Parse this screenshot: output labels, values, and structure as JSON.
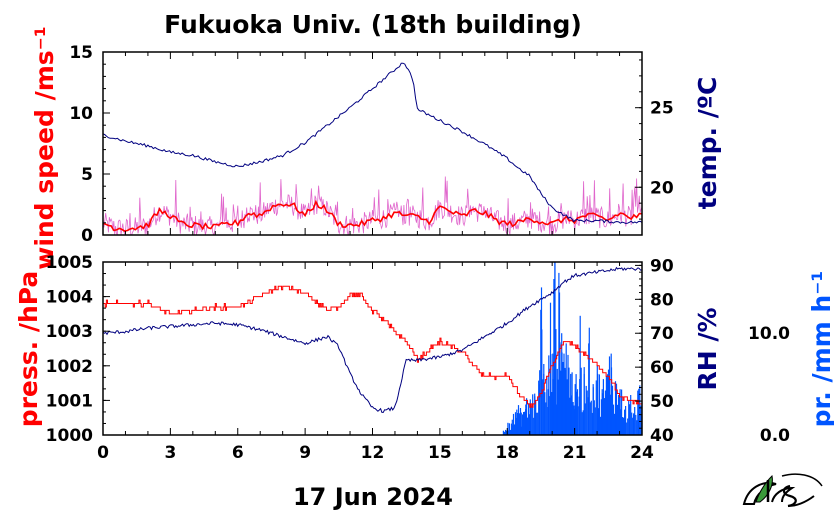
{
  "title": "Fukuoka Univ. (18th building)",
  "date": "17 Jun 2024",
  "colors": {
    "wind": "#ff0000",
    "wind_light": "#e066cc",
    "temp": "#000080",
    "press": "#ff0000",
    "rh": "#000080",
    "precip": "#0055ff"
  },
  "logo_icon": "ies-logo-icon",
  "chart_data": [
    {
      "type": "line",
      "panel": "top",
      "xlim": [
        0,
        24
      ],
      "x_ticks": [
        0,
        3,
        6,
        9,
        12,
        15,
        18,
        21,
        24
      ],
      "left_axis": {
        "label": "wind speed /ms⁻¹",
        "ylim": [
          0,
          15
        ],
        "ticks": [
          0,
          5,
          10,
          15
        ]
      },
      "right_axis": {
        "label": "temp. /ºC",
        "ylim": [
          17.0,
          28.5
        ],
        "ticks": [
          20,
          25
        ]
      },
      "series": [
        {
          "axis": "right",
          "x": [
            0,
            0.5,
            1,
            2,
            3,
            4,
            5,
            6,
            7,
            8,
            9,
            10,
            11,
            12,
            12.5,
            13,
            13.4,
            13.8,
            14,
            15,
            16,
            17,
            18,
            18.5,
            19,
            19.5,
            20,
            20.5,
            21,
            22,
            23,
            24
          ],
          "values": [
            23.3,
            23.1,
            22.9,
            22.6,
            22.2,
            22.0,
            21.6,
            21.3,
            21.6,
            22.0,
            22.8,
            23.9,
            25.0,
            26.2,
            26.8,
            27.4,
            27.9,
            26.8,
            24.9,
            24.2,
            23.5,
            22.7,
            21.8,
            21.2,
            20.7,
            19.6,
            18.7,
            18.3,
            17.9,
            17.9,
            17.8,
            17.8
          ]
        },
        {
          "axis": "left",
          "x": [
            0,
            0.5,
            1,
            1.5,
            2,
            2.5,
            3,
            3.5,
            4,
            4.5,
            5,
            5.5,
            6,
            6.5,
            7,
            7.5,
            8,
            8.5,
            9,
            9.5,
            10,
            10.5,
            11,
            11.5,
            12,
            12.5,
            13,
            13.5,
            14,
            14.5,
            15,
            15.5,
            16,
            16.5,
            17,
            17.5,
            18,
            18.5,
            19,
            19.5,
            20,
            20.5,
            21,
            21.5,
            22,
            22.5,
            23,
            23.5,
            24
          ],
          "values": [
            1.0,
            0.6,
            0.5,
            0.6,
            0.8,
            2.0,
            1.6,
            0.9,
            0.8,
            0.7,
            0.6,
            0.9,
            1.0,
            1.8,
            1.6,
            2.3,
            2.6,
            2.4,
            1.6,
            2.6,
            2.0,
            0.9,
            0.8,
            0.9,
            1.2,
            1.4,
            1.8,
            1.6,
            1.5,
            1.1,
            2.3,
            1.9,
            1.5,
            2.0,
            1.8,
            1.2,
            0.9,
            1.0,
            1.4,
            1.1,
            0.9,
            1.3,
            1.2,
            1.6,
            1.5,
            1.2,
            1.8,
            1.4,
            1.6
          ]
        }
      ]
    },
    {
      "type": "line",
      "panel": "bottom",
      "xlim": [
        0,
        24
      ],
      "x_ticks": [
        0,
        3,
        6,
        9,
        12,
        15,
        18,
        21,
        24
      ],
      "x_tick_labels": [
        "0",
        "3",
        "6",
        "9",
        "12",
        "15",
        "18",
        "21",
        "24"
      ],
      "left_axis": {
        "label": "press. /hPa",
        "ylim": [
          1000,
          1005
        ],
        "ticks": [
          1000,
          1001,
          1002,
          1003,
          1004,
          1005
        ]
      },
      "right_axis": {
        "label": "RH /%",
        "ylim": [
          40,
          91
        ],
        "ticks": [
          40,
          50,
          60,
          70,
          80,
          90
        ]
      },
      "precip_axis": {
        "label": "pr. /mm h⁻¹",
        "ticks": [
          0.0,
          10.0
        ],
        "tick_labels": [
          "0.0",
          "10.0"
        ],
        "ylim": [
          0,
          17
        ]
      },
      "series": [
        {
          "axis": "left",
          "x": [
            0,
            1,
            2,
            3,
            4,
            5,
            6,
            7,
            7.5,
            8,
            8.5,
            9,
            10,
            10.5,
            11,
            11.5,
            12,
            13,
            13.5,
            14,
            15,
            16,
            16.5,
            17,
            18,
            18.5,
            19,
            19.5,
            20,
            20.5,
            21,
            21.5,
            22,
            22.5,
            23,
            23.5,
            24
          ],
          "values": [
            1003.8,
            1003.8,
            1003.8,
            1003.5,
            1003.6,
            1003.7,
            1003.7,
            1004.0,
            1004.2,
            1004.3,
            1004.2,
            1004.1,
            1003.6,
            1003.7,
            1004.1,
            1004.0,
            1003.6,
            1003.0,
            1002.7,
            1002.2,
            1002.7,
            1002.4,
            1002.0,
            1001.7,
            1001.7,
            1001.2,
            1000.8,
            1001.2,
            1002.0,
            1002.7,
            1002.6,
            1002.3,
            1002.0,
            1001.7,
            1001.1,
            1001.0,
            1000.9
          ]
        },
        {
          "axis": "right",
          "x": [
            0,
            1,
            2,
            3,
            4,
            5,
            6,
            7,
            8,
            9,
            10,
            10.5,
            11,
            11.5,
            12,
            12.5,
            13,
            13.5,
            14,
            15,
            16,
            17,
            18,
            19,
            20,
            20.5,
            21,
            22,
            23,
            24
          ],
          "values": [
            70.0,
            70.5,
            71.5,
            72.0,
            72.5,
            73.0,
            72.5,
            71.0,
            69.0,
            67.0,
            69.0,
            66.0,
            58.0,
            52.0,
            48.0,
            47.0,
            48.0,
            62.0,
            62.0,
            63.0,
            65.0,
            69.0,
            73.0,
            78.0,
            82.0,
            85.0,
            87.0,
            88.0,
            89.0,
            89.0
          ]
        },
        {
          "axis": "precip",
          "type": "bar",
          "x": [
            17.9,
            18.0,
            18.2,
            18.4,
            18.6,
            18.8,
            19.0,
            19.2,
            19.4,
            19.5,
            19.6,
            19.8,
            19.9,
            20.0,
            20.1,
            20.2,
            20.3,
            20.4,
            20.5,
            20.6,
            20.8,
            21.0,
            21.1,
            21.2,
            21.4,
            21.6,
            21.8,
            22.0,
            22.2,
            22.4,
            22.6,
            22.8,
            23.0,
            23.2,
            23.4,
            23.6,
            23.8,
            24.0
          ],
          "values": [
            0.5,
            1.2,
            1.5,
            2.5,
            2.2,
            3.0,
            3.5,
            3.8,
            5.0,
            14.5,
            6.0,
            4.5,
            13.0,
            8.0,
            17.0,
            6.5,
            14.0,
            10.0,
            8.0,
            9.0,
            6.0,
            5.0,
            4.5,
            5.5,
            6.0,
            9.0,
            5.0,
            6.0,
            4.5,
            5.5,
            8.0,
            5.0,
            4.5,
            2.5,
            3.0,
            2.0,
            4.0,
            5.0
          ]
        }
      ]
    }
  ]
}
